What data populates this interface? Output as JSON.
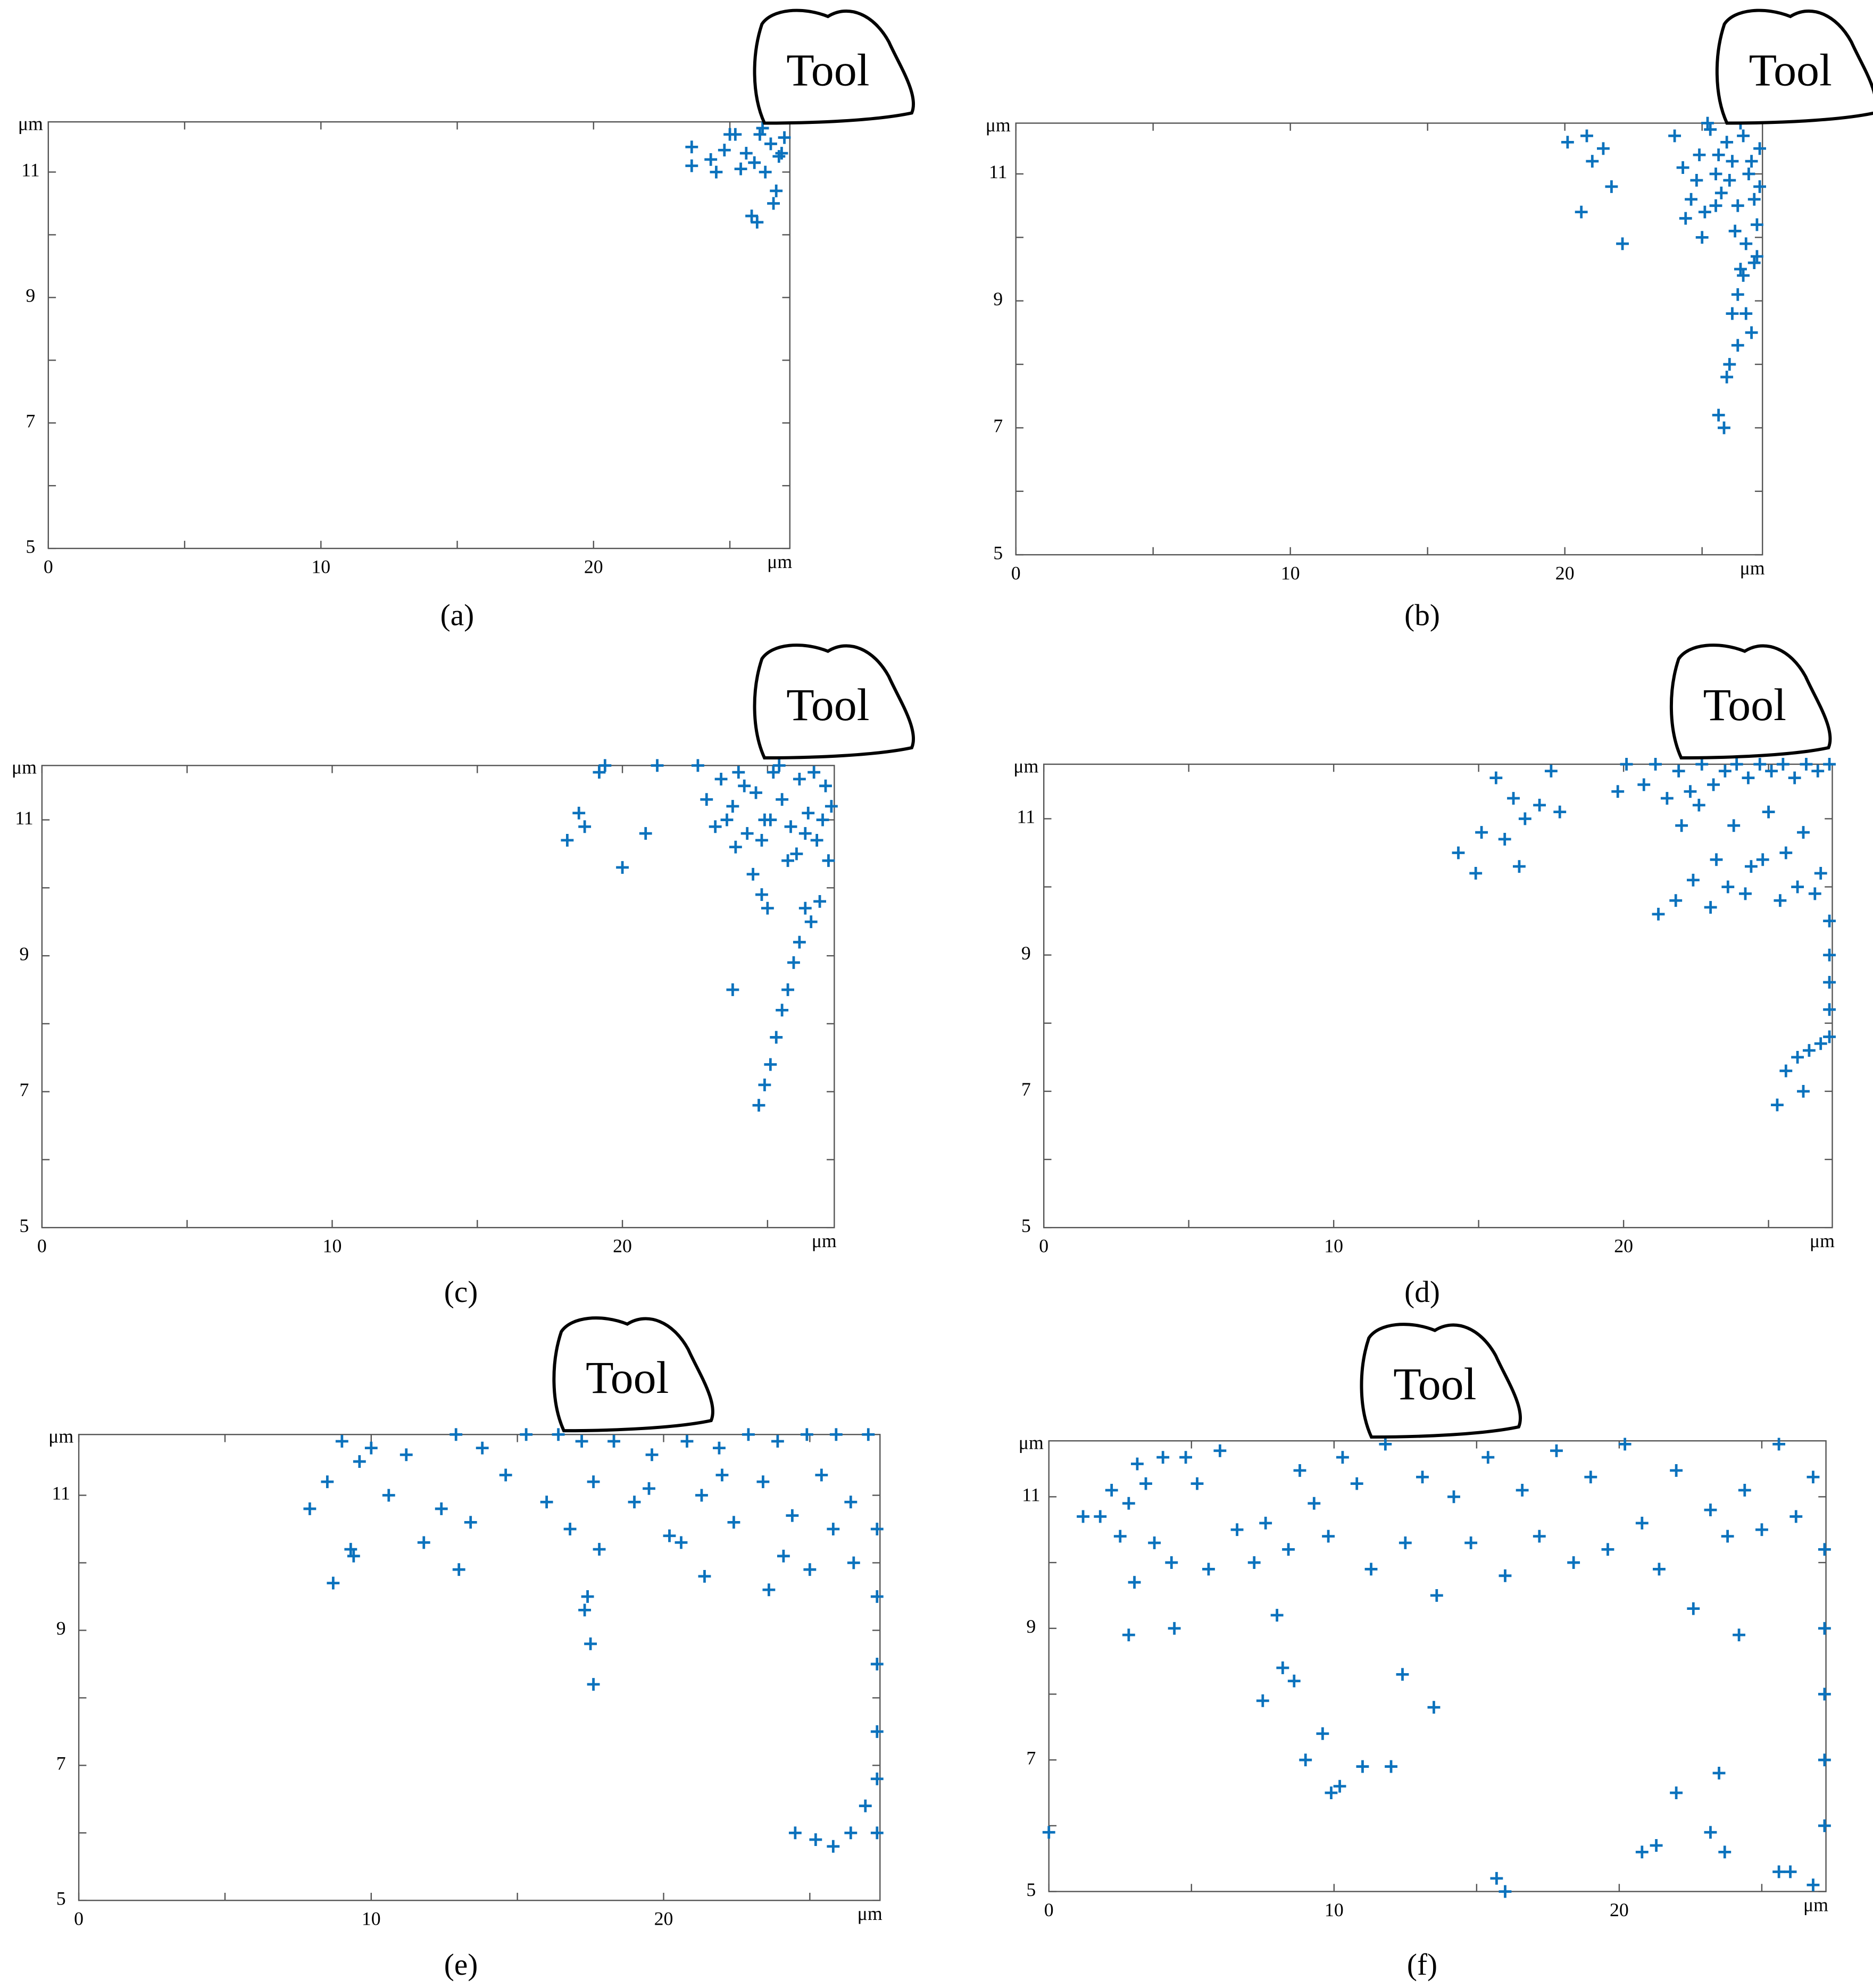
{
  "chart_data": [
    {
      "type": "scatter",
      "caption": "(a)",
      "tool_label": "Tool",
      "x_unit": "μm",
      "y_unit": "μm",
      "color": "#0b72bd",
      "xlim": [
        0,
        27.2
      ],
      "ylim": [
        5,
        11.8
      ],
      "xticks": [
        0,
        10,
        20
      ],
      "yticks": [
        5,
        7,
        9,
        11
      ],
      "x_minor_ticks": [
        5,
        15,
        25
      ],
      "y_minor_ticks": [
        6,
        8,
        10
      ],
      "x": [
        23.6,
        23.6,
        24.3,
        24.8,
        25.2,
        25.6,
        25.9,
        26.1,
        26.3,
        26.5,
        26.7,
        26.9,
        27.0,
        25.4,
        25.8,
        26.0,
        26.6,
        24.5,
        25.0,
        26.2,
        26.8
      ],
      "y": [
        11.4,
        11.1,
        11.2,
        11.35,
        11.6,
        11.3,
        11.15,
        11.6,
        11.0,
        11.45,
        10.7,
        11.3,
        11.55,
        11.05,
        10.3,
        10.2,
        10.5,
        11.0,
        11.6,
        11.7,
        11.25
      ]
    },
    {
      "type": "scatter",
      "caption": "(b)",
      "tool_label": "Tool",
      "x_unit": "μm",
      "y_unit": "μm",
      "color": "#0b72bd",
      "xlim": [
        0,
        27.2
      ],
      "ylim": [
        5,
        11.8
      ],
      "xticks": [
        0,
        10,
        20
      ],
      "yticks": [
        5,
        7,
        9,
        11
      ],
      "x_minor_ticks": [
        5,
        15,
        25
      ],
      "y_minor_ticks": [
        6,
        8,
        10
      ],
      "x": [
        20.1,
        20.8,
        21.0,
        21.4,
        20.6,
        21.7,
        22.1,
        24.0,
        24.3,
        24.6,
        24.9,
        25.1,
        25.3,
        25.5,
        25.7,
        25.9,
        26.1,
        26.3,
        26.5,
        26.7,
        26.9,
        27.1,
        24.4,
        24.8,
        25.2,
        25.6,
        26.0,
        26.4,
        26.8,
        27.1,
        25.0,
        25.5,
        26.2,
        26.6,
        27.0,
        26.9,
        26.5,
        26.3,
        26.1,
        26.6,
        26.8,
        26.3,
        26.0,
        25.9,
        25.6,
        25.8,
        27.0,
        26.4
      ],
      "y": [
        11.5,
        11.6,
        11.2,
        11.4,
        10.4,
        10.8,
        9.9,
        11.6,
        11.1,
        10.6,
        11.3,
        10.4,
        11.7,
        11.0,
        10.7,
        11.5,
        11.2,
        10.5,
        11.6,
        11.0,
        10.6,
        11.4,
        10.3,
        10.9,
        11.8,
        11.3,
        10.9,
        11.8,
        11.2,
        10.8,
        10.0,
        10.5,
        10.1,
        9.9,
        9.7,
        9.6,
        9.4,
        9.1,
        8.8,
        8.8,
        8.5,
        8.3,
        8.0,
        7.8,
        7.2,
        7.0,
        10.2,
        9.5
      ]
    },
    {
      "type": "scatter",
      "caption": "(c)",
      "tool_label": "Tool",
      "x_unit": "μm",
      "y_unit": "μm",
      "color": "#0b72bd",
      "xlim": [
        0,
        27.3
      ],
      "ylim": [
        5,
        11.8
      ],
      "xticks": [
        0,
        10,
        20
      ],
      "yticks": [
        5,
        7,
        9,
        11
      ],
      "x_minor_ticks": [
        5,
        15,
        25
      ],
      "y_minor_ticks": [
        6,
        8,
        10
      ],
      "x": [
        18.1,
        18.5,
        18.7,
        19.2,
        19.4,
        20.0,
        20.8,
        21.2,
        22.6,
        22.9,
        23.2,
        23.4,
        23.8,
        24.0,
        24.3,
        24.6,
        24.9,
        25.2,
        25.5,
        25.8,
        26.1,
        26.4,
        26.7,
        27.0,
        27.2,
        23.6,
        24.2,
        24.8,
        25.4,
        26.0,
        26.6,
        27.1,
        23.9,
        24.5,
        25.1,
        25.7,
        26.3,
        26.9,
        24.8,
        25.0,
        23.8,
        26.3,
        26.1,
        25.9,
        25.7,
        25.5,
        25.3,
        25.1,
        24.9,
        24.7,
        26.5,
        26.8
      ],
      "y": [
        10.7,
        11.1,
        10.9,
        11.7,
        11.8,
        10.3,
        10.8,
        11.8,
        11.8,
        11.3,
        10.9,
        11.6,
        11.2,
        11.7,
        10.8,
        11.4,
        11.0,
        11.7,
        11.3,
        10.9,
        11.6,
        11.1,
        10.7,
        11.5,
        11.2,
        11.0,
        11.5,
        10.7,
        11.8,
        10.5,
        11.7,
        10.4,
        10.6,
        10.2,
        11.0,
        10.4,
        10.8,
        11.0,
        9.9,
        9.7,
        8.5,
        9.7,
        9.2,
        8.9,
        8.5,
        8.2,
        7.8,
        7.4,
        7.1,
        6.8,
        9.5,
        9.8
      ]
    },
    {
      "type": "scatter",
      "caption": "(d)",
      "tool_label": "Tool",
      "x_unit": "μm",
      "y_unit": "μm",
      "color": "#0b72bd",
      "xlim": [
        0,
        27.2
      ],
      "ylim": [
        5,
        11.8
      ],
      "xticks": [
        0,
        10,
        20
      ],
      "yticks": [
        5,
        7,
        9,
        11
      ],
      "x_minor_ticks": [
        5,
        15,
        25
      ],
      "y_minor_ticks": [
        6,
        8,
        10
      ],
      "x": [
        14.3,
        14.9,
        15.1,
        15.6,
        15.9,
        16.2,
        16.4,
        16.6,
        17.1,
        17.5,
        17.8,
        19.8,
        20.1,
        20.7,
        21.1,
        21.5,
        21.9,
        22.3,
        22.7,
        23.1,
        23.5,
        23.9,
        24.3,
        24.7,
        25.1,
        25.5,
        25.9,
        26.3,
        26.7,
        27.1,
        22.0,
        22.6,
        23.2,
        23.8,
        24.4,
        25.0,
        25.6,
        26.2,
        26.8,
        21.2,
        21.8,
        22.4,
        23.0,
        23.6,
        24.2,
        24.8,
        25.4,
        26.0,
        26.6,
        27.1,
        27.1,
        27.1,
        27.1,
        27.1,
        26.4,
        26.0,
        25.6,
        25.3,
        26.8,
        26.2
      ],
      "y": [
        10.5,
        10.2,
        10.8,
        11.6,
        10.7,
        11.3,
        10.3,
        11.0,
        11.2,
        11.7,
        11.1,
        11.4,
        11.8,
        11.5,
        11.8,
        11.3,
        11.7,
        11.4,
        11.8,
        11.5,
        11.7,
        11.8,
        11.6,
        11.8,
        11.7,
        11.8,
        11.6,
        11.8,
        11.7,
        11.8,
        10.9,
        11.2,
        10.4,
        10.9,
        10.3,
        11.1,
        10.5,
        10.8,
        10.2,
        9.6,
        9.8,
        10.1,
        9.7,
        10.0,
        9.9,
        10.4,
        9.8,
        10.0,
        9.9,
        9.5,
        9.0,
        8.6,
        8.2,
        7.8,
        7.6,
        7.5,
        7.3,
        6.8,
        7.7,
        7.0
      ]
    },
    {
      "type": "scatter",
      "caption": "(e)",
      "tool_label": "Tool",
      "x_unit": "μm",
      "y_unit": "μm",
      "color": "#0b72bd",
      "xlim": [
        0,
        27.4
      ],
      "ylim": [
        5,
        11.9
      ],
      "xticks": [
        0,
        10,
        20
      ],
      "yticks": [
        5,
        7,
        9,
        11
      ],
      "x_minor_ticks": [
        5,
        15,
        25
      ],
      "y_minor_ticks": [
        6,
        8,
        10
      ],
      "x": [
        7.9,
        8.5,
        8.7,
        9.0,
        9.3,
        9.6,
        10.0,
        10.6,
        11.2,
        11.8,
        12.4,
        12.9,
        13.4,
        13.8,
        14.6,
        15.3,
        16.0,
        16.4,
        16.8,
        17.2,
        17.4,
        17.6,
        17.8,
        18.3,
        19.0,
        19.6,
        20.2,
        20.8,
        21.3,
        21.9,
        22.4,
        22.9,
        23.4,
        23.9,
        24.4,
        24.9,
        25.4,
        25.9,
        26.4,
        27.0,
        9.4,
        13.0,
        17.3,
        17.5,
        17.6,
        20.6,
        21.4,
        23.6,
        24.1,
        25.0,
        25.8,
        26.5,
        27.3,
        27.3,
        27.3,
        27.3,
        27.3,
        27.3,
        24.5,
        25.2,
        25.8,
        26.4,
        26.9,
        22.0,
        19.5
      ],
      "y": [
        10.8,
        11.2,
        9.7,
        11.8,
        10.2,
        11.5,
        11.7,
        11.0,
        11.6,
        10.3,
        10.8,
        11.9,
        10.6,
        11.7,
        11.3,
        11.9,
        10.9,
        11.9,
        10.5,
        11.8,
        9.5,
        11.2,
        10.2,
        11.8,
        10.9,
        11.6,
        10.4,
        11.8,
        11.0,
        11.7,
        10.6,
        11.9,
        11.2,
        11.8,
        10.7,
        11.9,
        11.3,
        11.9,
        10.9,
        11.9,
        10.1,
        9.9,
        9.3,
        8.8,
        8.2,
        10.3,
        9.8,
        9.6,
        10.1,
        9.9,
        10.5,
        10.0,
        10.5,
        9.5,
        8.5,
        7.5,
        6.8,
        6.0,
        6.0,
        5.9,
        5.8,
        6.0,
        6.4,
        11.3,
        11.1
      ]
    },
    {
      "type": "scatter",
      "caption": "(f)",
      "tool_label": "Tool",
      "x_unit": "μm",
      "y_unit": "μm",
      "color": "#0b72bd",
      "xlim": [
        0,
        27.25
      ],
      "ylim": [
        5,
        11.85
      ],
      "xticks": [
        0,
        10,
        20
      ],
      "yticks": [
        5,
        7,
        9,
        11
      ],
      "x_minor_ticks": [
        5,
        15,
        25
      ],
      "y_minor_ticks": [
        6,
        8,
        10
      ],
      "x": [
        0.0,
        1.2,
        1.8,
        2.2,
        2.5,
        2.8,
        3.1,
        3.4,
        3.7,
        4.0,
        4.3,
        4.8,
        5.2,
        5.6,
        6.0,
        6.6,
        7.2,
        7.6,
        8.0,
        8.4,
        8.8,
        9.3,
        9.8,
        10.3,
        10.8,
        11.3,
        11.8,
        12.5,
        13.1,
        13.6,
        14.2,
        14.8,
        15.4,
        16.0,
        16.6,
        17.2,
        17.8,
        18.4,
        19.0,
        19.6,
        20.2,
        20.8,
        21.4,
        22.0,
        22.6,
        23.2,
        23.8,
        24.4,
        25.0,
        25.6,
        26.2,
        26.8,
        27.2,
        27.2,
        27.2,
        27.2,
        27.2,
        7.5,
        8.2,
        8.6,
        9.0,
        9.6,
        9.9,
        10.2,
        11.0,
        12.0,
        12.4,
        13.5,
        15.7,
        16.0,
        20.8,
        21.3,
        22.0,
        23.2,
        23.5,
        23.7,
        24.2,
        25.6,
        26.0,
        2.8,
        4.4,
        3.0,
        26.8
      ],
      "y": [
        5.9,
        10.7,
        10.7,
        11.1,
        10.4,
        10.9,
        11.5,
        11.2,
        10.3,
        11.6,
        10.0,
        11.6,
        11.2,
        9.9,
        11.7,
        10.5,
        10.0,
        10.6,
        9.2,
        10.2,
        11.4,
        10.9,
        10.4,
        11.6,
        11.2,
        9.9,
        11.8,
        10.3,
        11.3,
        9.5,
        11.0,
        10.3,
        11.6,
        9.8,
        11.1,
        10.4,
        11.7,
        10.0,
        11.3,
        10.2,
        11.8,
        10.6,
        9.9,
        11.4,
        9.3,
        10.8,
        10.4,
        11.1,
        10.5,
        11.8,
        10.7,
        11.3,
        10.2,
        9.0,
        8.0,
        7.0,
        6.0,
        7.9,
        8.4,
        8.2,
        7.0,
        7.4,
        6.5,
        6.6,
        6.9,
        6.9,
        8.3,
        7.8,
        5.2,
        5.0,
        5.6,
        5.7,
        6.5,
        5.9,
        6.8,
        5.6,
        8.9,
        5.3,
        5.3,
        8.9,
        9.0,
        9.7,
        5.1
      ]
    }
  ]
}
